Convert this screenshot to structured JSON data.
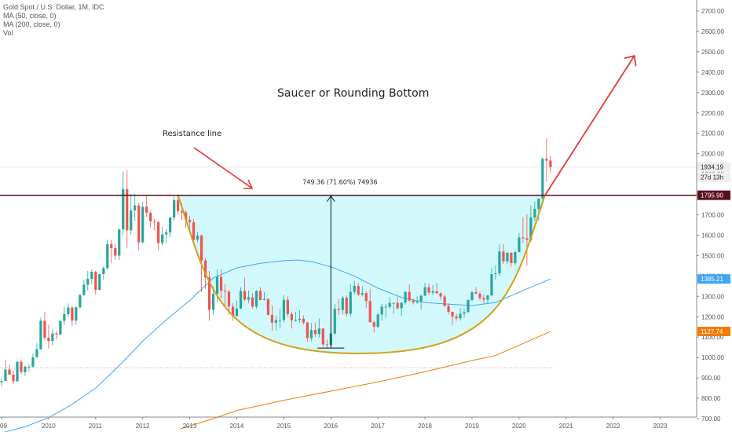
{
  "legend": {
    "symbol": "Gold Spot / U.S. Dollar, 1M, IDC",
    "ma50": "MA (50, close, 0)",
    "ma200": "MA (200, close, 0)",
    "vol": "Vol"
  },
  "annotations": {
    "title": "Saucer or Rounding Bottom",
    "resistance": "Resistance line",
    "measure": "749.36 (71.60%) 74936"
  },
  "colors": {
    "up": "#26a69a",
    "down": "#ef5350",
    "resistance_line": "#5b0f1e",
    "saucer_fill": "#d2f8fb",
    "saucer_curve": "#d4a017",
    "ma50": "#42a5f5",
    "ma200": "#f57c00",
    "arrow": "#e53935"
  },
  "chart_data": {
    "type": "candlestick",
    "y_axis": {
      "min": 700,
      "max": 2700,
      "ticks": [
        "700.00",
        "800.00",
        "900.00",
        "1000.00",
        "1100.00",
        "1200.00",
        "1300.00",
        "1400.00",
        "1500.00",
        "1600.00",
        "1700.00",
        "1800.00",
        "1900.00",
        "2000.00",
        "2100.00",
        "2200.00",
        "2300.00",
        "2400.00",
        "2500.00",
        "2600.00",
        "2700.00"
      ]
    },
    "x_axis": {
      "ticks": [
        "09",
        "2010",
        "2011",
        "2012",
        "2013",
        "2014",
        "2015",
        "2016",
        "2017",
        "2018",
        "2019",
        "2020",
        "2021",
        "2022",
        "2023"
      ]
    },
    "price_labels": [
      {
        "value": 1934.19,
        "text": "1934.19",
        "sub": "27d 13h",
        "role": "last"
      },
      {
        "value": 1795.9,
        "text": "1795.90",
        "role": "resistance"
      },
      {
        "value": 1385.21,
        "text": "1385.21",
        "role": "ma50"
      },
      {
        "value": 1127.74,
        "text": "1127.74",
        "role": "ma200"
      }
    ],
    "resistance_level": 1795.9,
    "measurement": {
      "low": 1046.5,
      "high": 1795.9,
      "date": 2016.0
    },
    "saucer": {
      "start": [
        2012.75,
        1795.9
      ],
      "bottom": [
        2016.6,
        1020
      ],
      "end": [
        2020.55,
        1795.9
      ]
    },
    "projection_arrow": {
      "from": [
        2020.55,
        1795.9
      ],
      "to": [
        2022.45,
        2480
      ]
    },
    "dotted_level": 950,
    "ohlc_monthly": [
      [
        2009.0,
        879,
        897,
        860,
        885
      ],
      [
        2009.083,
        885,
        990,
        885,
        941
      ],
      [
        2009.167,
        941,
        965,
        915,
        916
      ],
      [
        2009.25,
        916,
        938,
        870,
        884
      ],
      [
        2009.333,
        884,
        980,
        880,
        979
      ],
      [
        2009.417,
        979,
        990,
        920,
        928
      ],
      [
        2009.5,
        928,
        960,
        910,
        955
      ],
      [
        2009.583,
        955,
        965,
        930,
        955
      ],
      [
        2009.667,
        955,
        1020,
        950,
        1001
      ],
      [
        2009.75,
        1001,
        1070,
        1000,
        1040
      ],
      [
        2009.833,
        1040,
        1195,
        1040,
        1180
      ],
      [
        2009.917,
        1180,
        1225,
        1085,
        1097
      ],
      [
        2010.0,
        1097,
        1160,
        1045,
        1081
      ],
      [
        2010.083,
        1081,
        1140,
        1060,
        1118
      ],
      [
        2010.167,
        1118,
        1130,
        1090,
        1113
      ],
      [
        2010.25,
        1113,
        1180,
        1110,
        1180
      ],
      [
        2010.333,
        1180,
        1250,
        1160,
        1213
      ],
      [
        2010.417,
        1213,
        1265,
        1200,
        1245
      ],
      [
        2010.5,
        1245,
        1250,
        1155,
        1181
      ],
      [
        2010.583,
        1181,
        1250,
        1160,
        1246
      ],
      [
        2010.667,
        1246,
        1310,
        1240,
        1307
      ],
      [
        2010.75,
        1307,
        1380,
        1300,
        1357
      ],
      [
        2010.833,
        1357,
        1425,
        1330,
        1386
      ],
      [
        2010.917,
        1386,
        1432,
        1360,
        1421
      ],
      [
        2011.0,
        1421,
        1425,
        1308,
        1332
      ],
      [
        2011.083,
        1332,
        1412,
        1330,
        1409
      ],
      [
        2011.167,
        1409,
        1447,
        1380,
        1439
      ],
      [
        2011.25,
        1439,
        1577,
        1430,
        1556
      ],
      [
        2011.333,
        1556,
        1578,
        1462,
        1536
      ],
      [
        2011.417,
        1536,
        1560,
        1478,
        1500
      ],
      [
        2011.5,
        1500,
        1633,
        1480,
        1628
      ],
      [
        2011.583,
        1628,
        1913,
        1600,
        1826
      ],
      [
        2011.667,
        1826,
        1921,
        1535,
        1624
      ],
      [
        2011.75,
        1624,
        1804,
        1600,
        1722
      ],
      [
        2011.833,
        1722,
        1804,
        1670,
        1746
      ],
      [
        2011.917,
        1746,
        1760,
        1523,
        1565
      ],
      [
        2012.0,
        1565,
        1764,
        1560,
        1740
      ],
      [
        2012.083,
        1740,
        1791,
        1690,
        1710
      ],
      [
        2012.167,
        1710,
        1720,
        1640,
        1668
      ],
      [
        2012.25,
        1668,
        1680,
        1625,
        1664
      ],
      [
        2012.333,
        1664,
        1670,
        1527,
        1562
      ],
      [
        2012.417,
        1562,
        1640,
        1550,
        1604
      ],
      [
        2012.5,
        1604,
        1630,
        1560,
        1614
      ],
      [
        2012.583,
        1614,
        1690,
        1590,
        1687
      ],
      [
        2012.667,
        1687,
        1790,
        1670,
        1772
      ],
      [
        2012.75,
        1772,
        1795,
        1700,
        1718
      ],
      [
        2012.833,
        1718,
        1755,
        1675,
        1712
      ],
      [
        2012.917,
        1712,
        1722,
        1636,
        1675
      ],
      [
        2013.0,
        1675,
        1695,
        1625,
        1664
      ],
      [
        2013.083,
        1664,
        1680,
        1555,
        1578
      ],
      [
        2013.167,
        1578,
        1616,
        1565,
        1598
      ],
      [
        2013.25,
        1598,
        1605,
        1321,
        1476
      ],
      [
        2013.333,
        1476,
        1488,
        1338,
        1393
      ],
      [
        2013.417,
        1393,
        1425,
        1180,
        1234
      ],
      [
        2013.5,
        1234,
        1348,
        1208,
        1312
      ],
      [
        2013.583,
        1312,
        1433,
        1275,
        1396
      ],
      [
        2013.667,
        1396,
        1434,
        1290,
        1327
      ],
      [
        2013.75,
        1327,
        1361,
        1250,
        1323
      ],
      [
        2013.833,
        1323,
        1330,
        1210,
        1250
      ],
      [
        2013.917,
        1250,
        1268,
        1180,
        1204
      ],
      [
        2014.0,
        1204,
        1280,
        1200,
        1240
      ],
      [
        2014.083,
        1240,
        1345,
        1238,
        1326
      ],
      [
        2014.167,
        1326,
        1392,
        1277,
        1284
      ],
      [
        2014.25,
        1284,
        1330,
        1268,
        1295
      ],
      [
        2014.333,
        1295,
        1315,
        1240,
        1250
      ],
      [
        2014.417,
        1250,
        1330,
        1240,
        1327
      ],
      [
        2014.5,
        1327,
        1345,
        1281,
        1282
      ],
      [
        2014.583,
        1282,
        1320,
        1280,
        1287
      ],
      [
        2014.667,
        1287,
        1290,
        1206,
        1209
      ],
      [
        2014.75,
        1209,
        1255,
        1130,
        1171
      ],
      [
        2014.833,
        1171,
        1205,
        1132,
        1183
      ],
      [
        2014.917,
        1183,
        1240,
        1142,
        1184
      ],
      [
        2015.0,
        1184,
        1307,
        1170,
        1283
      ],
      [
        2015.083,
        1283,
        1300,
        1200,
        1213
      ],
      [
        2015.167,
        1213,
        1225,
        1142,
        1183
      ],
      [
        2015.25,
        1183,
        1225,
        1175,
        1184
      ],
      [
        2015.333,
        1184,
        1232,
        1170,
        1190
      ],
      [
        2015.417,
        1190,
        1205,
        1162,
        1172
      ],
      [
        2015.5,
        1172,
        1175,
        1077,
        1095
      ],
      [
        2015.583,
        1095,
        1170,
        1080,
        1135
      ],
      [
        2015.667,
        1135,
        1170,
        1100,
        1115
      ],
      [
        2015.75,
        1115,
        1191,
        1098,
        1142
      ],
      [
        2015.833,
        1142,
        1145,
        1052,
        1064
      ],
      [
        2015.917,
        1064,
        1088,
        1046,
        1061
      ],
      [
        2016.0,
        1061,
        1130,
        1062,
        1118
      ],
      [
        2016.083,
        1118,
        1263,
        1110,
        1238
      ],
      [
        2016.167,
        1238,
        1287,
        1208,
        1233
      ],
      [
        2016.25,
        1233,
        1303,
        1210,
        1293
      ],
      [
        2016.333,
        1293,
        1305,
        1200,
        1215
      ],
      [
        2016.417,
        1215,
        1362,
        1200,
        1322
      ],
      [
        2016.5,
        1322,
        1377,
        1310,
        1351
      ],
      [
        2016.583,
        1351,
        1367,
        1300,
        1309
      ],
      [
        2016.667,
        1309,
        1352,
        1300,
        1316
      ],
      [
        2016.75,
        1316,
        1325,
        1241,
        1277
      ],
      [
        2016.833,
        1277,
        1337,
        1171,
        1173
      ],
      [
        2016.917,
        1173,
        1180,
        1122,
        1151
      ],
      [
        2017.0,
        1151,
        1220,
        1145,
        1211
      ],
      [
        2017.083,
        1211,
        1264,
        1180,
        1249
      ],
      [
        2017.167,
        1249,
        1262,
        1195,
        1249
      ],
      [
        2017.25,
        1249,
        1295,
        1240,
        1268
      ],
      [
        2017.333,
        1268,
        1270,
        1214,
        1268
      ],
      [
        2017.417,
        1268,
        1296,
        1236,
        1242
      ],
      [
        2017.5,
        1242,
        1270,
        1204,
        1269
      ],
      [
        2017.583,
        1269,
        1326,
        1260,
        1322
      ],
      [
        2017.667,
        1322,
        1358,
        1271,
        1280
      ],
      [
        2017.75,
        1280,
        1290,
        1260,
        1270
      ],
      [
        2017.833,
        1270,
        1300,
        1264,
        1275
      ],
      [
        2017.917,
        1275,
        1310,
        1236,
        1303
      ],
      [
        2018.0,
        1303,
        1366,
        1303,
        1345
      ],
      [
        2018.083,
        1345,
        1362,
        1306,
        1318
      ],
      [
        2018.167,
        1318,
        1356,
        1306,
        1325
      ],
      [
        2018.25,
        1325,
        1366,
        1313,
        1315
      ],
      [
        2018.333,
        1315,
        1320,
        1282,
        1299
      ],
      [
        2018.417,
        1299,
        1309,
        1250,
        1253
      ],
      [
        2018.5,
        1253,
        1266,
        1211,
        1224
      ],
      [
        2018.583,
        1224,
        1225,
        1160,
        1201
      ],
      [
        2018.667,
        1201,
        1214,
        1180,
        1192
      ],
      [
        2018.75,
        1192,
        1243,
        1182,
        1215
      ],
      [
        2018.833,
        1215,
        1237,
        1196,
        1222
      ],
      [
        2018.917,
        1222,
        1285,
        1221,
        1282
      ],
      [
        2019.0,
        1282,
        1326,
        1275,
        1321
      ],
      [
        2019.083,
        1321,
        1346,
        1310,
        1313
      ],
      [
        2019.167,
        1313,
        1324,
        1280,
        1292
      ],
      [
        2019.25,
        1292,
        1310,
        1266,
        1284
      ],
      [
        2019.333,
        1284,
        1306,
        1267,
        1305
      ],
      [
        2019.417,
        1305,
        1438,
        1300,
        1409
      ],
      [
        2019.5,
        1409,
        1452,
        1382,
        1413
      ],
      [
        2019.583,
        1413,
        1555,
        1400,
        1520
      ],
      [
        2019.667,
        1520,
        1557,
        1459,
        1472
      ],
      [
        2019.75,
        1472,
        1518,
        1458,
        1513
      ],
      [
        2019.833,
        1513,
        1517,
        1445,
        1463
      ],
      [
        2019.917,
        1463,
        1524,
        1455,
        1517
      ],
      [
        2020.0,
        1517,
        1611,
        1517,
        1589
      ],
      [
        2020.083,
        1589,
        1689,
        1562,
        1585
      ],
      [
        2020.167,
        1585,
        1704,
        1451,
        1577
      ],
      [
        2020.25,
        1577,
        1747,
        1567,
        1687
      ],
      [
        2020.333,
        1687,
        1765,
        1670,
        1729
      ],
      [
        2020.417,
        1729,
        1780,
        1670,
        1780
      ],
      [
        2020.5,
        1780,
        1982,
        1755,
        1975
      ],
      [
        2020.583,
        1975,
        2075,
        1863,
        1966
      ],
      [
        2020.667,
        1966,
        1990,
        1905,
        1934
      ]
    ],
    "ma50": [
      [
        2009.0,
        630
      ],
      [
        2009.5,
        660
      ],
      [
        2010.0,
        705
      ],
      [
        2010.5,
        770
      ],
      [
        2011.0,
        850
      ],
      [
        2011.5,
        960
      ],
      [
        2012.0,
        1080
      ],
      [
        2012.5,
        1185
      ],
      [
        2013.0,
        1280
      ],
      [
        2013.5,
        1390
      ],
      [
        2014.0,
        1440
      ],
      [
        2014.5,
        1462
      ],
      [
        2015.0,
        1475
      ],
      [
        2015.3,
        1478
      ],
      [
        2015.6,
        1470
      ],
      [
        2016.0,
        1445
      ],
      [
        2016.5,
        1400
      ],
      [
        2017.0,
        1340
      ],
      [
        2017.5,
        1295
      ],
      [
        2018.0,
        1270
      ],
      [
        2018.5,
        1262
      ],
      [
        2019.0,
        1255
      ],
      [
        2019.5,
        1270
      ],
      [
        2020.0,
        1320
      ],
      [
        2020.67,
        1385
      ]
    ],
    "ma200": [
      [
        2012.8,
        650
      ],
      [
        2013.5,
        700
      ],
      [
        2014.0,
        740
      ],
      [
        2015.0,
        790
      ],
      [
        2016.0,
        835
      ],
      [
        2017.0,
        880
      ],
      [
        2018.0,
        930
      ],
      [
        2019.0,
        985
      ],
      [
        2019.5,
        1010
      ],
      [
        2020.0,
        1060
      ],
      [
        2020.67,
        1128
      ]
    ]
  }
}
